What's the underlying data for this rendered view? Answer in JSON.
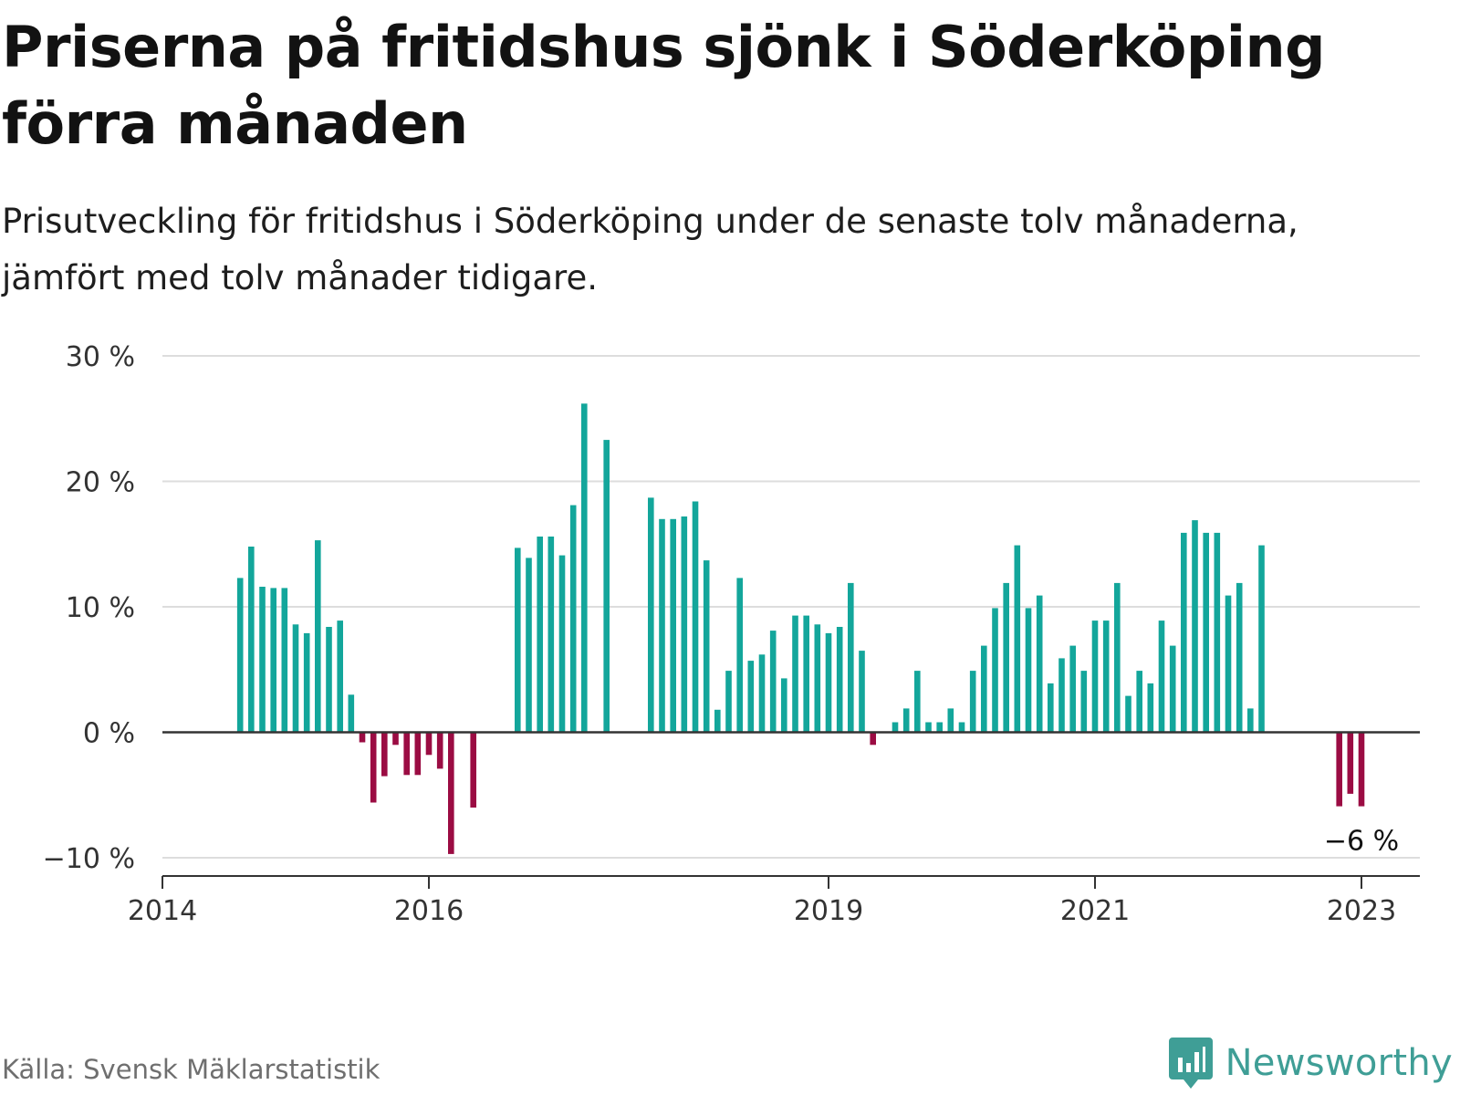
{
  "header": {
    "title": "Priserna på fritidshus sjönk i Söderköping förra månaden",
    "subtitle": "Prisutveckling för fritidshus i Söderköping under de senaste tolv månaderna, jämfört med tolv månader tidigare."
  },
  "footer": {
    "source": "Källa: Svensk Mäklarstatistik",
    "brand": "Newsworthy"
  },
  "colors": {
    "positive": "#13a69b",
    "negative": "#9b0c43",
    "grid": "#dddddd",
    "axis": "#333333",
    "brand": "#3f9e96"
  },
  "icons": {
    "brand_logo": "bar-chart-speech-bubble-icon"
  },
  "chart_data": {
    "type": "bar",
    "ylim": [
      -10,
      30
    ],
    "yticks": [
      -10,
      0,
      10,
      20,
      30
    ],
    "ytick_labels": [
      "−10 %",
      "0 %",
      "10 %",
      "20 %",
      "30 %"
    ],
    "xtick_labels": [
      "2014",
      "2016",
      "2019",
      "2021",
      "2023"
    ],
    "xtick_dates": [
      "2014-01",
      "2016-01",
      "2019-01",
      "2021-01",
      "2023-01"
    ],
    "annotation": "−6 %",
    "annotation_date": "2023-01",
    "x": [
      "2014-08",
      "2014-09",
      "2014-10",
      "2014-11",
      "2014-12",
      "2015-01",
      "2015-02",
      "2015-03",
      "2015-04",
      "2015-05",
      "2015-06",
      "2015-07",
      "2015-08",
      "2015-09",
      "2015-10",
      "2015-11",
      "2015-12",
      "2016-01",
      "2016-02",
      "2016-03",
      "2016-04",
      "2016-05",
      "2016-06",
      "2016-07",
      "2016-08",
      "2016-09",
      "2016-10",
      "2016-11",
      "2016-12",
      "2017-01",
      "2017-02",
      "2017-03",
      "2017-04",
      "2017-05",
      "2017-06",
      "2017-07",
      "2017-08",
      "2017-09",
      "2017-10",
      "2017-11",
      "2017-12",
      "2018-01",
      "2018-02",
      "2018-03",
      "2018-04",
      "2018-05",
      "2018-06",
      "2018-07",
      "2018-08",
      "2018-09",
      "2018-10",
      "2018-11",
      "2018-12",
      "2019-01",
      "2019-02",
      "2019-03",
      "2019-04",
      "2019-05",
      "2019-06",
      "2019-07",
      "2019-08",
      "2019-09",
      "2019-10",
      "2019-11",
      "2019-12",
      "2020-01",
      "2020-02",
      "2020-03",
      "2020-04",
      "2020-05",
      "2020-06",
      "2020-07",
      "2020-08",
      "2020-09",
      "2020-10",
      "2020-11",
      "2020-12",
      "2021-01",
      "2021-02",
      "2021-03",
      "2021-04",
      "2021-05",
      "2021-06",
      "2021-07",
      "2021-08",
      "2021-09",
      "2021-10",
      "2021-11",
      "2021-12",
      "2022-01",
      "2022-02",
      "2022-03",
      "2022-04",
      "2022-05",
      "2022-06",
      "2022-07",
      "2022-08",
      "2022-09",
      "2022-10",
      "2022-11",
      "2022-12",
      "2023-01"
    ],
    "values": [
      12.3,
      14.8,
      11.6,
      11.5,
      11.5,
      8.6,
      7.9,
      15.3,
      8.4,
      8.9,
      3.0,
      -0.8,
      -5.6,
      -3.5,
      -1.0,
      -3.4,
      -3.4,
      -1.8,
      -2.9,
      -9.7,
      null,
      -6.0,
      null,
      null,
      null,
      14.7,
      13.9,
      15.6,
      15.6,
      14.1,
      18.1,
      26.2,
      null,
      23.3,
      null,
      null,
      null,
      18.7,
      17.0,
      17.0,
      17.2,
      18.4,
      13.7,
      1.8,
      4.9,
      12.3,
      5.7,
      6.2,
      8.1,
      4.3,
      9.3,
      9.3,
      8.6,
      7.9,
      8.4,
      11.9,
      6.5,
      -1.0,
      null,
      0.8,
      1.9,
      4.9,
      0.8,
      0.8,
      1.9,
      0.8,
      4.9,
      6.9,
      9.9,
      11.9,
      14.9,
      9.9,
      10.9,
      3.9,
      5.9,
      6.9,
      4.9,
      8.9,
      8.9,
      11.9,
      2.9,
      4.9,
      3.9,
      8.9,
      6.9,
      15.9,
      16.9,
      15.9,
      15.9,
      10.9,
      11.9,
      1.9,
      14.9,
      null,
      null,
      null,
      null,
      null,
      null,
      -5.9,
      -4.9,
      -5.9
    ]
  }
}
